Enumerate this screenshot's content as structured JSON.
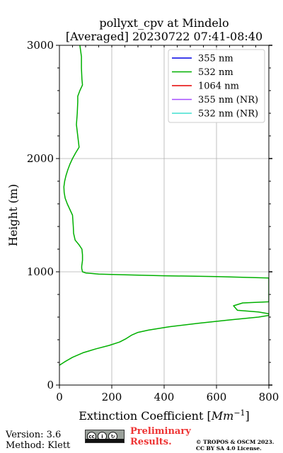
{
  "chart_data": {
    "type": "line",
    "title": "pollyxt_cpv at Mindelo",
    "subtitle": "[Averaged] 20230722 07:41-08:40",
    "xlabel_prefix": "Extinction Coefficient [",
    "xlabel_unit": "Mm",
    "xlabel_exp": "−1",
    "xlabel_suffix": "]",
    "ylabel": "Height (m)",
    "xlim": [
      0,
      800
    ],
    "ylim": [
      0,
      3000
    ],
    "xticks": [
      0,
      200,
      400,
      600,
      800
    ],
    "yticks": [
      0,
      1000,
      2000,
      3000
    ],
    "grid": true,
    "legend_position": "top-right",
    "series": [
      {
        "name": "355 nm",
        "color": "#0000e6",
        "points": []
      },
      {
        "name": "532 nm",
        "color": "#00b000",
        "points": [
          [
            0,
            175
          ],
          [
            20,
            205
          ],
          [
            50,
            245
          ],
          [
            90,
            285
          ],
          [
            140,
            320
          ],
          [
            190,
            350
          ],
          [
            230,
            380
          ],
          [
            255,
            410
          ],
          [
            275,
            440
          ],
          [
            300,
            465
          ],
          [
            340,
            485
          ],
          [
            420,
            515
          ],
          [
            530,
            545
          ],
          [
            650,
            575
          ],
          [
            760,
            600
          ],
          [
            800,
            615
          ],
          [
            800,
            630
          ],
          [
            760,
            645
          ],
          [
            680,
            660
          ],
          [
            665,
            700
          ],
          [
            700,
            725
          ],
          [
            800,
            735
          ],
          [
            800,
            945
          ],
          [
            600,
            958
          ],
          [
            400,
            965
          ],
          [
            250,
            973
          ],
          [
            150,
            980
          ],
          [
            100,
            990
          ],
          [
            88,
            1000
          ],
          [
            85,
            1030
          ],
          [
            85,
            1050
          ],
          [
            88,
            1100
          ],
          [
            88,
            1150
          ],
          [
            86,
            1200
          ],
          [
            76,
            1235
          ],
          [
            60,
            1280
          ],
          [
            54,
            1340
          ],
          [
            53,
            1400
          ],
          [
            50,
            1500
          ],
          [
            40,
            1550
          ],
          [
            30,
            1600
          ],
          [
            22,
            1650
          ],
          [
            18,
            1700
          ],
          [
            17,
            1750
          ],
          [
            20,
            1800
          ],
          [
            25,
            1850
          ],
          [
            32,
            1900
          ],
          [
            40,
            1950
          ],
          [
            50,
            2000
          ],
          [
            62,
            2050
          ],
          [
            75,
            2100
          ],
          [
            70,
            2200
          ],
          [
            65,
            2300
          ],
          [
            68,
            2400
          ],
          [
            70,
            2500
          ],
          [
            70,
            2550
          ],
          [
            78,
            2600
          ],
          [
            88,
            2650
          ],
          [
            86,
            2700
          ],
          [
            84,
            2800
          ],
          [
            84,
            2900
          ],
          [
            78,
            3000
          ]
        ]
      },
      {
        "name": "1064 nm",
        "color": "#e60000",
        "points": []
      },
      {
        "name": "355 nm (NR)",
        "color": "#a64dff",
        "points": []
      },
      {
        "name": "532 nm (NR)",
        "color": "#40e0d0",
        "points": []
      }
    ]
  },
  "footer": {
    "version": "Version: 3.6",
    "method": "Method: Klett",
    "preliminary_line1": "Preliminary",
    "preliminary_line2": "Results.",
    "license_line1": "© TROPOS & OSCM 2023.",
    "license_line2": "CC BY SA 4.0 License.",
    "badge_cc": "cc"
  }
}
